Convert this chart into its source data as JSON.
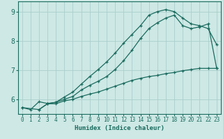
{
  "xlabel": "Humidex (Indice chaleur)",
  "bg_color": "#cde8e5",
  "line_color": "#1a6b5e",
  "grid_color": "#aacfcc",
  "xlim": [
    -0.5,
    23.5
  ],
  "ylim": [
    5.5,
    9.35
  ],
  "xticks": [
    0,
    1,
    2,
    3,
    4,
    5,
    6,
    7,
    8,
    9,
    10,
    11,
    12,
    13,
    14,
    15,
    16,
    17,
    18,
    19,
    20,
    21,
    22,
    23
  ],
  "yticks": [
    6,
    7,
    8,
    9
  ],
  "curve1": {
    "x": [
      0,
      1,
      2,
      3,
      4,
      5,
      6,
      7,
      8,
      9,
      10,
      11,
      12,
      13,
      14,
      15,
      16,
      17,
      18,
      19,
      20,
      21,
      22,
      23
    ],
    "y": [
      5.72,
      5.65,
      5.92,
      5.86,
      5.9,
      6.08,
      6.25,
      6.52,
      6.78,
      7.02,
      7.28,
      7.58,
      7.92,
      8.22,
      8.52,
      8.88,
      9.0,
      9.07,
      9.0,
      8.78,
      8.58,
      8.52,
      8.42,
      7.88
    ]
  },
  "curve2": {
    "x": [
      2,
      3,
      4,
      5,
      6,
      7,
      8,
      9,
      10,
      11,
      12,
      13,
      14,
      15,
      16,
      17,
      18,
      19,
      20,
      21,
      22,
      23
    ],
    "y": [
      5.65,
      5.85,
      5.9,
      6.0,
      6.1,
      6.32,
      6.48,
      6.62,
      6.78,
      7.02,
      7.32,
      7.68,
      8.08,
      8.42,
      8.62,
      8.78,
      8.88,
      8.52,
      8.42,
      8.48,
      8.58,
      7.08
    ]
  },
  "curve3": {
    "x": [
      0,
      2,
      3,
      4,
      5,
      6,
      7,
      8,
      9,
      10,
      11,
      12,
      13,
      14,
      15,
      16,
      17,
      18,
      19,
      20,
      21,
      22,
      23
    ],
    "y": [
      5.72,
      5.65,
      5.85,
      5.85,
      5.95,
      6.0,
      6.1,
      6.18,
      6.25,
      6.35,
      6.45,
      6.55,
      6.65,
      6.72,
      6.78,
      6.82,
      6.88,
      6.92,
      6.98,
      7.02,
      7.06,
      7.06,
      7.06
    ]
  }
}
